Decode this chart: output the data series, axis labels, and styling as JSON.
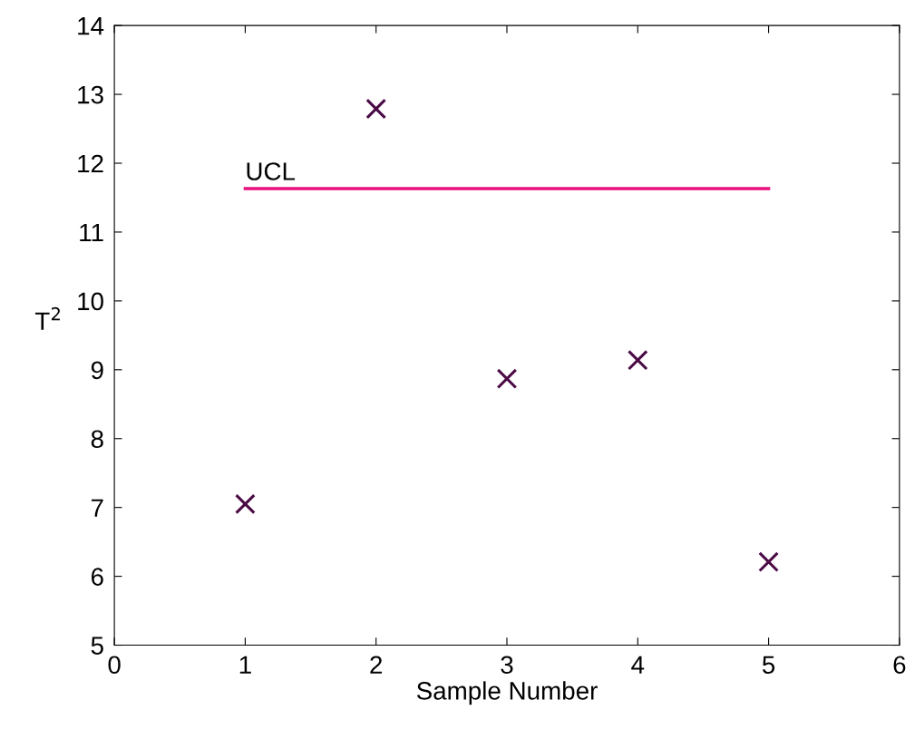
{
  "chart_data": {
    "type": "scatter",
    "xlabel": "Sample Number",
    "ylabel": "T$^{2}$",
    "series": [
      {
        "color": "#4b0a46",
        "marker": "cross",
        "x": [
          1,
          2,
          3,
          4,
          5
        ],
        "values": [
          7.05,
          12.79,
          8.87,
          9.14,
          6.21
        ]
      },
      {
        "type": "line",
        "name": "UCL",
        "color": "#e8127e",
        "line_style": "solid",
        "x": [
          1,
          5
        ],
        "values": [
          11.63,
          11.63
        ]
      }
    ],
    "xlim": [
      0,
      6
    ],
    "xticks": [
      0,
      1,
      2,
      3,
      4,
      5,
      6
    ],
    "ylim": [
      5,
      14
    ],
    "yticks": [
      5,
      6,
      7,
      8,
      9,
      10,
      11,
      12,
      13,
      14
    ],
    "grid": false,
    "legend": false
  }
}
